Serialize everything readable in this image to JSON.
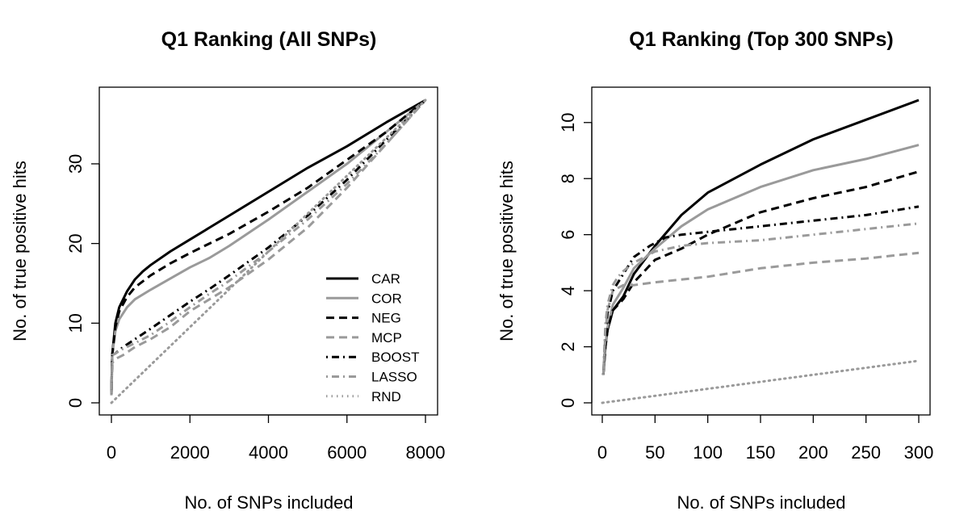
{
  "colors": {
    "black": "#000000",
    "gray": "#9a9a9a"
  },
  "legend_entries": [
    {
      "name": "CAR",
      "color": "#000000",
      "dash": "solid"
    },
    {
      "name": "COR",
      "color": "#9a9a9a",
      "dash": "solid"
    },
    {
      "name": "NEG",
      "color": "#000000",
      "dash": "dashed"
    },
    {
      "name": "MCP",
      "color": "#9a9a9a",
      "dash": "dashed"
    },
    {
      "name": "BOOST",
      "color": "#000000",
      "dash": "dotdash"
    },
    {
      "name": "LASSO",
      "color": "#9a9a9a",
      "dash": "dotdash"
    },
    {
      "name": "RND",
      "color": "#9a9a9a",
      "dash": "dotted"
    }
  ],
  "chart_data": [
    {
      "type": "line",
      "title": "Q1 Ranking (All SNPs)",
      "xlabel": "No. of SNPs included",
      "ylabel": "No. of true positive hits",
      "xlim": [
        0,
        8000
      ],
      "ylim": [
        0,
        38
      ],
      "xticks": [
        0,
        2000,
        4000,
        6000,
        8000
      ],
      "xtick_labels": [
        "0",
        "2000",
        "4000",
        "6000",
        "8000"
      ],
      "yticks": [
        0,
        10,
        20,
        30
      ],
      "ytick_labels": [
        "0",
        "10",
        "20",
        "30"
      ],
      "legend": "bottom-right",
      "series": [
        {
          "name": "CAR",
          "x": [
            0,
            20,
            100,
            200,
            400,
            600,
            800,
            1000,
            1500,
            2000,
            2500,
            3000,
            4000,
            5000,
            6000,
            7000,
            8000
          ],
          "y": [
            1,
            6,
            10,
            12,
            14,
            15.5,
            16.5,
            17.3,
            19,
            20.5,
            22,
            23.5,
            26.5,
            29.5,
            32.2,
            35.2,
            38
          ]
        },
        {
          "name": "COR",
          "x": [
            0,
            20,
            100,
            200,
            400,
            600,
            1000,
            1500,
            2000,
            2500,
            3000,
            4000,
            5000,
            6000,
            7000,
            8000
          ],
          "y": [
            1,
            6,
            9,
            10.5,
            12,
            13,
            14.2,
            15.6,
            17,
            18.2,
            19.7,
            23,
            26.5,
            30,
            34,
            38
          ]
        },
        {
          "name": "NEG",
          "x": [
            0,
            20,
            100,
            200,
            400,
            600,
            1000,
            1500,
            2000,
            2500,
            3000,
            4000,
            5000,
            6000,
            7000,
            8000
          ],
          "y": [
            1,
            6,
            9.5,
            11.5,
            13.3,
            14.5,
            16,
            17.5,
            18.8,
            20,
            21.2,
            24,
            27,
            30.5,
            34,
            38
          ]
        },
        {
          "name": "MCP",
          "x": [
            0,
            20,
            100,
            300,
            600,
            1000,
            1500,
            2000,
            2500,
            3000,
            4000,
            5000,
            6000,
            7000,
            8000
          ],
          "y": [
            1,
            5,
            5.5,
            6,
            7,
            8,
            9.5,
            11.5,
            13,
            14.5,
            18,
            22,
            27,
            32.5,
            38
          ]
        },
        {
          "name": "BOOST",
          "x": [
            0,
            20,
            100,
            300,
            600,
            1000,
            1500,
            2000,
            2500,
            3000,
            4000,
            5000,
            6000,
            7000,
            8000
          ],
          "y": [
            1,
            6,
            6.2,
            7,
            8,
            9.3,
            11,
            12.7,
            14.3,
            16,
            19.5,
            23.5,
            28,
            33,
            38
          ]
        },
        {
          "name": "LASSO",
          "x": [
            0,
            20,
            100,
            300,
            600,
            1000,
            1500,
            2000,
            2500,
            3000,
            4000,
            5000,
            6000,
            7000,
            8000
          ],
          "y": [
            1,
            6,
            6.2,
            6.8,
            7.5,
            8.5,
            10.2,
            12,
            13.7,
            15.3,
            19,
            23,
            27.5,
            32.5,
            38
          ]
        },
        {
          "name": "RND",
          "x": [
            0,
            8000
          ],
          "y": [
            0,
            38
          ]
        }
      ]
    },
    {
      "type": "line",
      "title": "Q1 Ranking (Top 300 SNPs)",
      "xlabel": "No. of SNPs included",
      "ylabel": "No. of true positive hits",
      "xlim": [
        0,
        300
      ],
      "ylim": [
        0,
        10.8
      ],
      "xticks": [
        0,
        50,
        100,
        150,
        200,
        250,
        300
      ],
      "xtick_labels": [
        "0",
        "50",
        "100",
        "150",
        "200",
        "250",
        "300"
      ],
      "yticks": [
        0,
        2,
        4,
        6,
        8,
        10
      ],
      "ytick_labels": [
        "0",
        "2",
        "4",
        "6",
        "8",
        "10"
      ],
      "series": [
        {
          "name": "CAR",
          "x": [
            1,
            3,
            5,
            10,
            20,
            30,
            50,
            75,
            100,
            150,
            200,
            250,
            300
          ],
          "y": [
            1,
            2,
            2.6,
            3.3,
            3.8,
            4.6,
            5.6,
            6.7,
            7.5,
            8.5,
            9.4,
            10.1,
            10.8
          ]
        },
        {
          "name": "COR",
          "x": [
            1,
            3,
            5,
            10,
            20,
            30,
            50,
            75,
            100,
            150,
            200,
            250,
            300
          ],
          "y": [
            1,
            2,
            2.7,
            3.5,
            4.1,
            4.8,
            5.5,
            6.3,
            6.9,
            7.7,
            8.3,
            8.7,
            9.2
          ]
        },
        {
          "name": "NEG",
          "x": [
            1,
            3,
            5,
            10,
            20,
            30,
            50,
            75,
            100,
            150,
            200,
            250,
            300
          ],
          "y": [
            1,
            2,
            2.6,
            3.3,
            3.7,
            4.3,
            5.1,
            5.5,
            6,
            6.8,
            7.3,
            7.7,
            8.25
          ]
        },
        {
          "name": "MCP",
          "x": [
            1,
            3,
            5,
            10,
            20,
            30,
            50,
            75,
            100,
            150,
            200,
            250,
            300
          ],
          "y": [
            1,
            2.5,
            3.3,
            4,
            4.2,
            4.2,
            4.3,
            4.4,
            4.5,
            4.8,
            5,
            5.15,
            5.35
          ]
        },
        {
          "name": "BOOST",
          "x": [
            1,
            3,
            5,
            10,
            20,
            30,
            45,
            60,
            75,
            100,
            150,
            200,
            250,
            300
          ],
          "y": [
            1,
            2.5,
            3.2,
            4,
            4.6,
            5.2,
            5.6,
            5.9,
            6,
            6.1,
            6.3,
            6.5,
            6.7,
            7
          ]
        },
        {
          "name": "LASSO",
          "x": [
            1,
            3,
            5,
            10,
            15,
            20,
            30,
            50,
            75,
            100,
            150,
            200,
            250,
            300
          ],
          "y": [
            1,
            2.8,
            3.5,
            4.2,
            4.5,
            4.7,
            5,
            5.4,
            5.6,
            5.7,
            5.8,
            6,
            6.2,
            6.4
          ]
        },
        {
          "name": "RND",
          "x": [
            0,
            300
          ],
          "y": [
            0,
            1.5
          ]
        }
      ]
    }
  ]
}
